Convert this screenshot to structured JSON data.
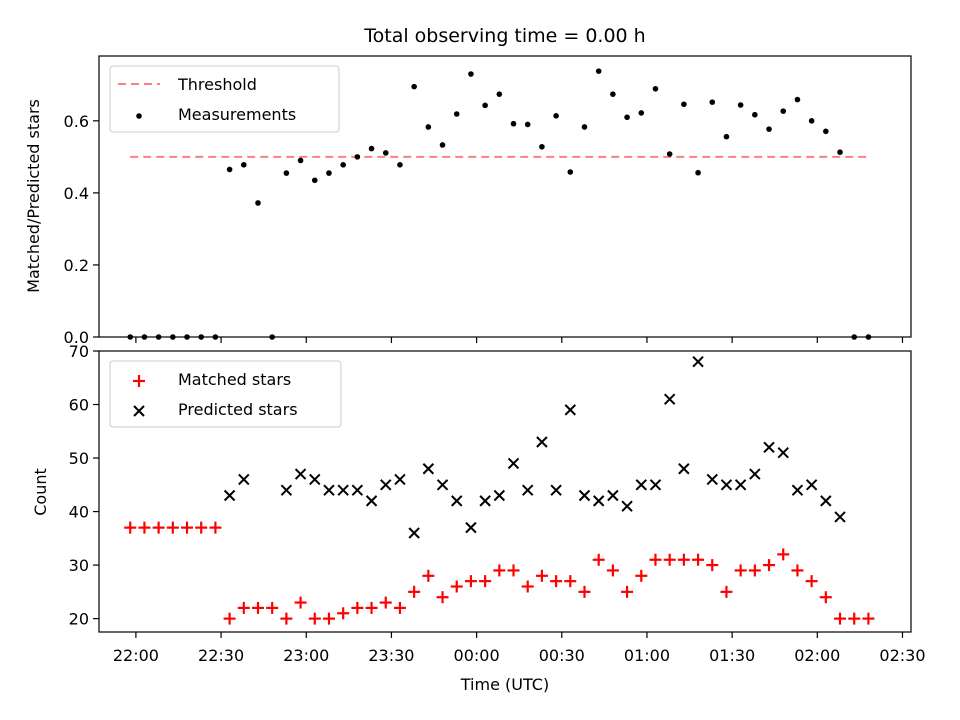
{
  "chart_data": [
    {
      "type": "scatter",
      "title": "Total observing time = 0.00 h",
      "ylabel": "Matched/Predicted stars",
      "ylim": [
        0,
        0.78
      ],
      "yticks": [
        0.0,
        0.2,
        0.4,
        0.6
      ],
      "ytick_labels": [
        "0.0",
        "0.2",
        "0.4",
        "0.6"
      ],
      "legend_position": "top-left",
      "threshold": {
        "name": "Threshold",
        "value": 0.5,
        "x_start": "21:58",
        "x_end": "02:19",
        "color": "#ff7f7f",
        "style": "dashed"
      },
      "series": [
        {
          "name": "Measurements",
          "color": "#000000",
          "marker": "dot",
          "points": [
            [
              "21:58",
              0.0
            ],
            [
              "22:03",
              0.0
            ],
            [
              "22:08",
              0.0
            ],
            [
              "22:13",
              0.0
            ],
            [
              "22:18",
              0.0
            ],
            [
              "22:23",
              0.0
            ],
            [
              "22:28",
              0.0
            ],
            [
              "22:33",
              0.465
            ],
            [
              "22:38",
              0.478
            ],
            [
              "22:43",
              0.372
            ],
            [
              "22:48",
              0.0
            ],
            [
              "22:53",
              0.455
            ],
            [
              "22:58",
              0.49
            ],
            [
              "23:03",
              0.435
            ],
            [
              "23:08",
              0.455
            ],
            [
              "23:13",
              0.478
            ],
            [
              "23:18",
              0.5
            ],
            [
              "23:23",
              0.523
            ],
            [
              "23:28",
              0.511
            ],
            [
              "23:33",
              0.478
            ],
            [
              "23:38",
              0.695
            ],
            [
              "23:43",
              0.583
            ],
            [
              "23:48",
              0.533
            ],
            [
              "23:53",
              0.619
            ],
            [
              "23:58",
              0.73
            ],
            [
              "00:03",
              0.643
            ],
            [
              "00:08",
              0.674
            ],
            [
              "00:13",
              0.592
            ],
            [
              "00:18",
              0.59
            ],
            [
              "00:23",
              0.528
            ],
            [
              "00:28",
              0.614
            ],
            [
              "00:33",
              0.458
            ],
            [
              "00:38",
              0.583
            ],
            [
              "00:43",
              0.738
            ],
            [
              "00:48",
              0.674
            ],
            [
              "00:53",
              0.61
            ],
            [
              "00:58",
              0.622
            ],
            [
              "01:03",
              0.689
            ],
            [
              "01:08",
              0.508
            ],
            [
              "01:13",
              0.646
            ],
            [
              "01:18",
              0.456
            ],
            [
              "01:23",
              0.652
            ],
            [
              "01:28",
              0.556
            ],
            [
              "01:33",
              0.644
            ],
            [
              "01:38",
              0.617
            ],
            [
              "01:43",
              0.577
            ],
            [
              "01:48",
              0.627
            ],
            [
              "01:53",
              0.659
            ],
            [
              "01:58",
              0.6
            ],
            [
              "02:03",
              0.571
            ],
            [
              "02:08",
              0.513
            ],
            [
              "02:13",
              0.0
            ],
            [
              "02:18",
              0.0
            ]
          ]
        }
      ]
    },
    {
      "type": "scatter",
      "xlabel": "Time (UTC)",
      "ylabel": "Count",
      "ylim": [
        17.5,
        70
      ],
      "yticks": [
        20,
        30,
        40,
        50,
        60,
        70
      ],
      "ytick_labels": [
        "20",
        "30",
        "40",
        "50",
        "60",
        "70"
      ],
      "xlim": [
        "21:47",
        "02:33"
      ],
      "xticks": [
        "22:00",
        "22:30",
        "23:00",
        "23:30",
        "00:00",
        "00:30",
        "01:00",
        "01:30",
        "02:00",
        "02:30"
      ],
      "xtick_labels": [
        "22:00",
        "22:30",
        "23:00",
        "23:30",
        "00:00",
        "00:30",
        "01:00",
        "01:30",
        "02:00",
        "02:30"
      ],
      "legend_position": "top-left",
      "series": [
        {
          "name": "Matched stars",
          "color": "#ff0000",
          "marker": "plus",
          "points": [
            [
              "21:58",
              37
            ],
            [
              "22:03",
              37
            ],
            [
              "22:08",
              37
            ],
            [
              "22:13",
              37
            ],
            [
              "22:18",
              37
            ],
            [
              "22:23",
              37
            ],
            [
              "22:28",
              37
            ],
            [
              "22:33",
              20
            ],
            [
              "22:38",
              22
            ],
            [
              "22:43",
              22
            ],
            [
              "22:48",
              22
            ],
            [
              "22:53",
              20
            ],
            [
              "22:58",
              23
            ],
            [
              "23:03",
              20
            ],
            [
              "23:08",
              20
            ],
            [
              "23:13",
              21
            ],
            [
              "23:18",
              22
            ],
            [
              "23:23",
              22
            ],
            [
              "23:28",
              23
            ],
            [
              "23:33",
              22
            ],
            [
              "23:38",
              25
            ],
            [
              "23:43",
              28
            ],
            [
              "23:48",
              24
            ],
            [
              "23:53",
              26
            ],
            [
              "23:58",
              27
            ],
            [
              "00:03",
              27
            ],
            [
              "00:08",
              29
            ],
            [
              "00:13",
              29
            ],
            [
              "00:18",
              26
            ],
            [
              "00:23",
              28
            ],
            [
              "00:28",
              27
            ],
            [
              "00:33",
              27
            ],
            [
              "00:38",
              25
            ],
            [
              "00:43",
              31
            ],
            [
              "00:48",
              29
            ],
            [
              "00:53",
              25
            ],
            [
              "00:58",
              28
            ],
            [
              "01:03",
              31
            ],
            [
              "01:08",
              31
            ],
            [
              "01:13",
              31
            ],
            [
              "01:18",
              31
            ],
            [
              "01:23",
              30
            ],
            [
              "01:28",
              25
            ],
            [
              "01:33",
              29
            ],
            [
              "01:38",
              29
            ],
            [
              "01:43",
              30
            ],
            [
              "01:48",
              32
            ],
            [
              "01:53",
              29
            ],
            [
              "01:58",
              27
            ],
            [
              "02:03",
              24
            ],
            [
              "02:08",
              20
            ],
            [
              "02:13",
              20
            ],
            [
              "02:18",
              20
            ]
          ]
        },
        {
          "name": "Predicted stars",
          "color": "#000000",
          "marker": "x",
          "points": [
            [
              "22:33",
              43
            ],
            [
              "22:38",
              46
            ],
            [
              "22:53",
              44
            ],
            [
              "22:58",
              47
            ],
            [
              "23:03",
              46
            ],
            [
              "23:08",
              44
            ],
            [
              "23:13",
              44
            ],
            [
              "23:18",
              44
            ],
            [
              "23:23",
              42
            ],
            [
              "23:28",
              45
            ],
            [
              "23:33",
              46
            ],
            [
              "23:38",
              36
            ],
            [
              "23:43",
              48
            ],
            [
              "23:48",
              45
            ],
            [
              "23:53",
              42
            ],
            [
              "23:58",
              37
            ],
            [
              "00:03",
              42
            ],
            [
              "00:08",
              43
            ],
            [
              "00:13",
              49
            ],
            [
              "00:18",
              44
            ],
            [
              "00:23",
              53
            ],
            [
              "00:28",
              44
            ],
            [
              "00:33",
              59
            ],
            [
              "00:38",
              43
            ],
            [
              "00:43",
              42
            ],
            [
              "00:48",
              43
            ],
            [
              "00:53",
              41
            ],
            [
              "00:58",
              45
            ],
            [
              "01:03",
              45
            ],
            [
              "01:08",
              61
            ],
            [
              "01:13",
              48
            ],
            [
              "01:18",
              68
            ],
            [
              "01:23",
              46
            ],
            [
              "01:28",
              45
            ],
            [
              "01:33",
              45
            ],
            [
              "01:38",
              47
            ],
            [
              "01:43",
              52
            ],
            [
              "01:48",
              51
            ],
            [
              "01:53",
              44
            ],
            [
              "01:58",
              45
            ],
            [
              "02:03",
              42
            ],
            [
              "02:08",
              39
            ]
          ]
        }
      ]
    }
  ]
}
